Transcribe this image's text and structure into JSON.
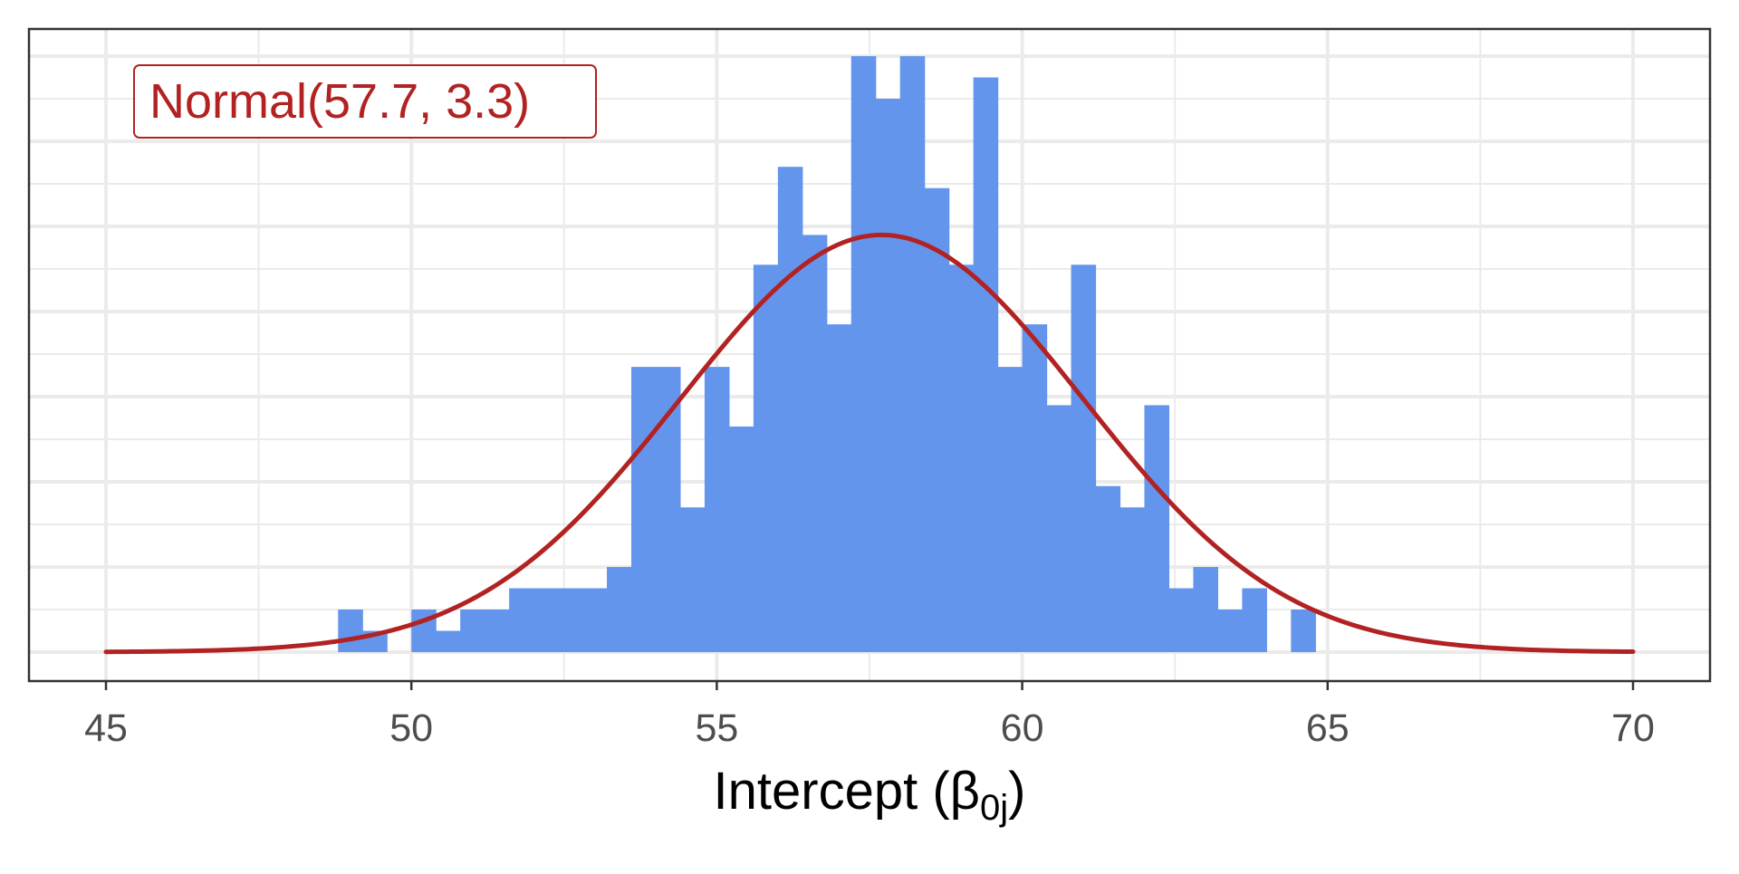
{
  "chart_data": {
    "type": "bar",
    "xlabel": "Intercept (β0j)",
    "xlabel_parts": {
      "main": "Intercept (",
      "greek": "β",
      "subscript": "0j",
      "close": ")"
    },
    "ylabel": "",
    "xlim": [
      44,
      72
    ],
    "ylim": [
      0,
      7
    ],
    "x_ticks": [
      45,
      50,
      55,
      60,
      65,
      70
    ],
    "x_tick_labels": [
      "45",
      "50",
      "55",
      "60",
      "65",
      "70"
    ],
    "grid": true,
    "y_tick_labels_shown": false,
    "bin_width": 0.4,
    "bin_start": 48.8,
    "bin_counts": [
      0.5,
      0.25,
      0,
      0.5,
      0.25,
      0.5,
      0.5,
      0.75,
      0.75,
      0.75,
      0.75,
      1,
      3.35,
      3.35,
      1.7,
      3.35,
      2.65,
      4.55,
      5.7,
      4.9,
      3.85,
      7,
      6.5,
      7,
      5.45,
      4.55,
      6.75,
      3.35,
      3.85,
      2.9,
      4.55,
      1.95,
      1.7,
      2.9,
      0.75,
      1,
      0.5,
      0.75,
      0,
      0.5
    ],
    "series": [
      {
        "name": "Normal(57.7, 3.3)",
        "type": "density",
        "mean": 57.7,
        "sd": 3.3,
        "x_range": [
          45,
          70
        ],
        "peak_value": 4.9
      }
    ],
    "annotation": "Normal(57.7, 3.3)",
    "annotation_position": "top-left",
    "colors": {
      "bars": "#6495ED",
      "curve": "#B22222",
      "grid": "#EBEBEB",
      "panel_border": "#333333",
      "tick_label": "#4D4D4D",
      "axis_title": "#000000"
    }
  }
}
